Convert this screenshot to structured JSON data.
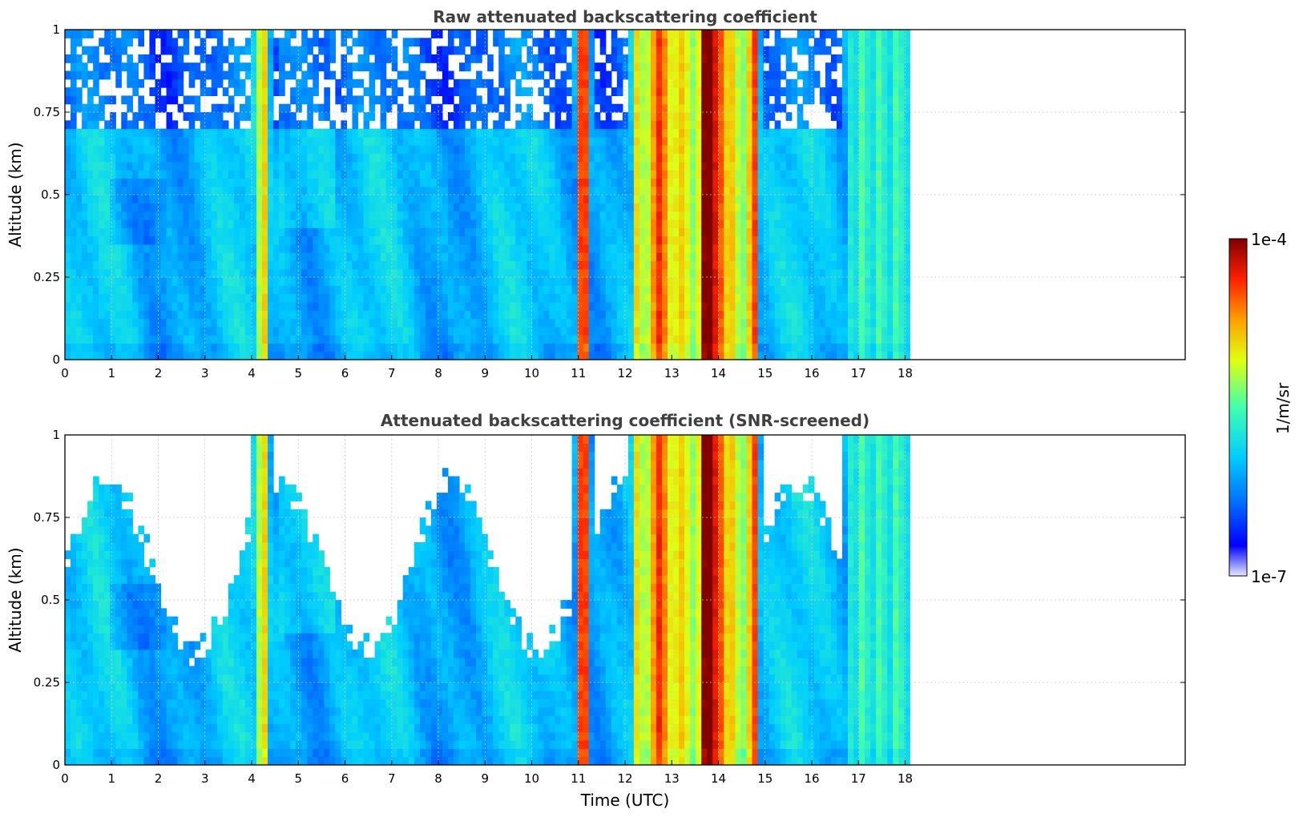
{
  "chart_data": [
    {
      "type": "heatmap",
      "title": "Raw attenuated backscattering coefficient",
      "xlabel": "",
      "ylabel": "Altitude (km)",
      "xlim": [
        0,
        24
      ],
      "ylim": [
        0,
        1
      ],
      "x_ticks": [
        "0",
        "1",
        "2",
        "3",
        "4",
        "5",
        "6",
        "7",
        "8",
        "9",
        "10",
        "11",
        "12",
        "13",
        "14",
        "15",
        "16",
        "17",
        "18"
      ],
      "y_ticks": [
        "0",
        "0.25",
        "0.5",
        "0.75",
        "1"
      ],
      "grid": true,
      "data_extent_hours": [
        0,
        18.1
      ],
      "screened": false,
      "notable_features": [
        {
          "time_range": [
            4.1,
            4.4
          ],
          "level": "high"
        },
        {
          "time_range": [
            11.0,
            11.2
          ],
          "level": "high"
        },
        {
          "time_range": [
            12.2,
            14.9
          ],
          "level": "very high"
        },
        {
          "time_range": [
            16.8,
            18.1
          ],
          "level": "medium"
        }
      ]
    },
    {
      "type": "heatmap",
      "title": "Attenuated backscattering coefficient (SNR-screened)",
      "xlabel": "Time (UTC)",
      "ylabel": "Altitude (km)",
      "xlim": [
        0,
        24
      ],
      "ylim": [
        0,
        1
      ],
      "x_ticks": [
        "0",
        "1",
        "2",
        "3",
        "4",
        "5",
        "6",
        "7",
        "8",
        "9",
        "10",
        "11",
        "12",
        "13",
        "14",
        "15",
        "16",
        "17",
        "18"
      ],
      "y_ticks": [
        "0",
        "0.25",
        "0.5",
        "0.75",
        "1"
      ],
      "grid": true,
      "data_extent_hours": [
        0,
        18.1
      ],
      "screened": true
    }
  ],
  "colorbar": {
    "label": "1/m/sr",
    "max_label": "1e-4",
    "min_label": "1e-7",
    "colormap": "jet",
    "scale": "log"
  }
}
